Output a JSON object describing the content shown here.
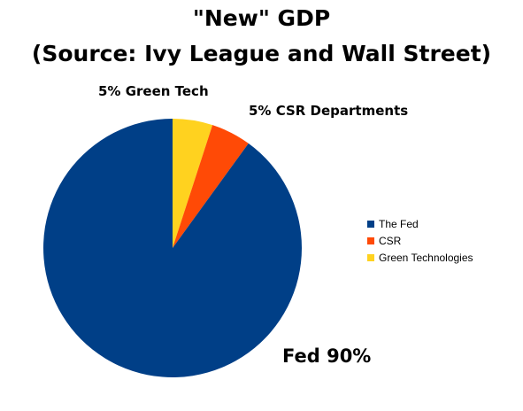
{
  "chart_data": {
    "type": "pie",
    "title": "\"New\" GDP",
    "subtitle": "(Source:  Ivy League and Wall Street)",
    "slices": [
      {
        "name": "The Fed",
        "value": 90,
        "color": "#003F87",
        "label": "Fed 90%"
      },
      {
        "name": "CSR",
        "value": 5,
        "color": "#FF4A06",
        "label": "5% CSR Departments"
      },
      {
        "name": "Green Technologies",
        "value": 5,
        "color": "#FFD21F",
        "label": "5% Green Tech"
      }
    ],
    "legend_position": "right"
  }
}
